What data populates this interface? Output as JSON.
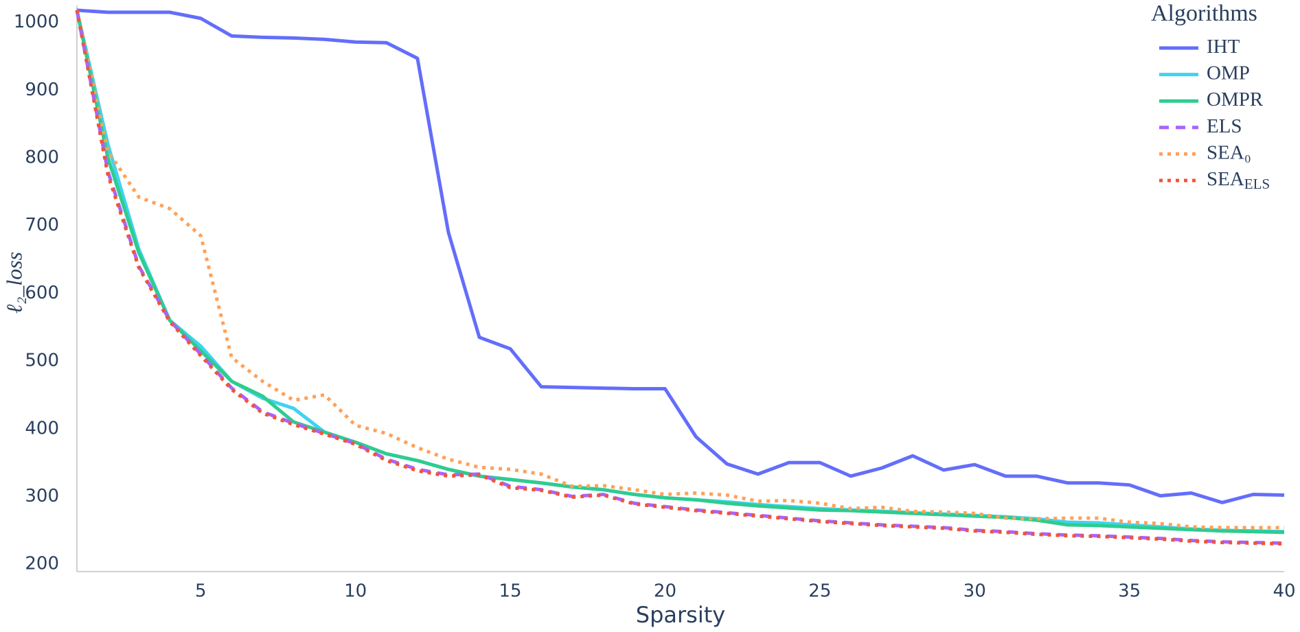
{
  "chart_data": {
    "type": "line",
    "x_label": "Sparsity",
    "y_label": "ℓ₂_loss",
    "legend_title": "Algorithms",
    "legend_position": "top-right",
    "x": [
      1,
      2,
      3,
      4,
      5,
      6,
      7,
      8,
      9,
      10,
      11,
      12,
      13,
      14,
      15,
      16,
      17,
      18,
      19,
      20,
      21,
      22,
      23,
      24,
      25,
      26,
      27,
      28,
      29,
      30,
      31,
      32,
      33,
      34,
      35,
      36,
      37,
      38,
      39,
      40
    ],
    "xlim": [
      1,
      40
    ],
    "xticks": [
      5,
      10,
      15,
      20,
      25,
      30,
      35,
      40
    ],
    "ylim": [
      189,
      1025
    ],
    "yticks": [
      200,
      300,
      400,
      500,
      600,
      700,
      800,
      900,
      1000
    ],
    "grid": false,
    "series": [
      {
        "name": "IHT",
        "color": "#636efa",
        "dash": "solid",
        "values": [
          1018,
          1015,
          1015,
          1015,
          1006,
          980,
          978,
          977,
          975,
          971,
          970,
          947,
          690,
          535,
          518,
          462,
          461,
          460,
          459,
          459,
          388,
          348,
          333,
          350,
          350,
          330,
          342,
          360,
          339,
          347,
          330,
          330,
          320,
          320,
          317,
          301,
          305,
          291,
          303,
          302
        ]
      },
      {
        "name": "OMP",
        "color": "#3fd3f0",
        "dash": "solid",
        "values": [
          1018,
          820,
          665,
          560,
          522,
          470,
          445,
          430,
          395,
          380,
          363,
          353,
          340,
          330,
          325,
          320,
          314,
          310,
          303,
          298,
          295,
          292,
          288,
          285,
          282,
          280,
          278,
          276,
          274,
          272,
          270,
          267,
          262,
          261,
          258,
          255,
          252,
          250,
          249,
          248
        ]
      },
      {
        "name": "OMPR",
        "color": "#2ecc8f",
        "dash": "solid",
        "values": [
          1018,
          800,
          660,
          560,
          515,
          470,
          448,
          410,
          395,
          380,
          363,
          353,
          340,
          330,
          325,
          320,
          314,
          310,
          303,
          298,
          295,
          290,
          286,
          283,
          280,
          279,
          277,
          275,
          273,
          271,
          269,
          265,
          258,
          257,
          255,
          253,
          251,
          249,
          248,
          247
        ]
      },
      {
        "name": "ELS",
        "color": "#ab63fa",
        "dash": "dash",
        "values": [
          1018,
          780,
          640,
          560,
          510,
          460,
          425,
          408,
          393,
          378,
          355,
          340,
          332,
          333,
          315,
          310,
          300,
          303,
          290,
          285,
          280,
          276,
          272,
          268,
          264,
          261,
          258,
          256,
          254,
          250,
          248,
          245,
          243,
          242,
          240,
          238,
          235,
          233,
          232,
          231
        ]
      },
      {
        "name": "SEA₀",
        "color": "#ffa15a",
        "dash": "dot",
        "values": [
          1018,
          810,
          742,
          725,
          685,
          505,
          470,
          442,
          450,
          405,
          393,
          372,
          355,
          343,
          340,
          333,
          315,
          316,
          310,
          303,
          305,
          302,
          293,
          294,
          290,
          282,
          284,
          278,
          277,
          275,
          268,
          267,
          268,
          268,
          262,
          260,
          255,
          254,
          254,
          254
        ]
      },
      {
        "name": "SEA",
        "name_subscript": "ELS",
        "color": "#ef553b",
        "dash": "dot",
        "values": [
          1018,
          775,
          638,
          558,
          508,
          458,
          423,
          406,
          392,
          377,
          353,
          338,
          330,
          332,
          313,
          309,
          299,
          302,
          289,
          284,
          279,
          275,
          271,
          267,
          263,
          260,
          257,
          255,
          253,
          249,
          247,
          244,
          242,
          241,
          239,
          237,
          234,
          232,
          231,
          230
        ]
      }
    ]
  }
}
